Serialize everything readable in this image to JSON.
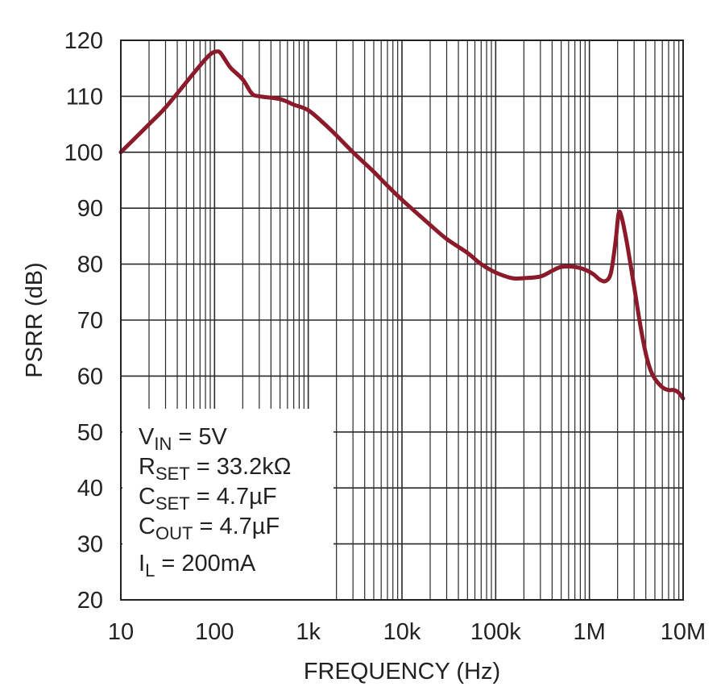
{
  "chart_data": {
    "type": "line",
    "title": "",
    "xlabel": "FREQUENCY (Hz)",
    "ylabel": "PSRR (dB)",
    "x_scale": "log",
    "xlim": [
      10,
      10000000
    ],
    "ylim": [
      20,
      120
    ],
    "grid": true,
    "x_tick_labels": [
      "10",
      "100",
      "1k",
      "10k",
      "100k",
      "1M",
      "10M"
    ],
    "y_tick_labels": [
      "20",
      "30",
      "40",
      "50",
      "60",
      "70",
      "80",
      "90",
      "100",
      "110",
      "120"
    ],
    "series_color": "#8B1A2B",
    "series": [
      {
        "x": [
          10,
          20,
          30,
          50,
          70,
          90,
          105,
          115,
          130,
          150,
          200,
          250,
          300,
          500,
          700,
          1000,
          1500,
          2000,
          3000,
          5000,
          7000,
          10000,
          20000,
          30000,
          50000,
          70000,
          100000,
          150000,
          200000,
          300000,
          400000,
          500000,
          700000,
          900000,
          1100000,
          1300000,
          1500000,
          1700000,
          1900000,
          2050000,
          2200000,
          2500000,
          3000000,
          3500000,
          4000000,
          4500000,
          5000000,
          6000000,
          7000000,
          8000000,
          9000000,
          10000000
        ],
        "y": [
          100,
          105,
          108,
          112.5,
          115.5,
          117.5,
          118,
          117.8,
          116.5,
          115,
          113,
          110.5,
          110,
          109.5,
          108.5,
          107.5,
          105,
          103,
          100,
          96.5,
          94,
          91.5,
          87,
          84.5,
          82,
          80,
          78.5,
          77.5,
          77.5,
          77.8,
          78.8,
          79.5,
          79.5,
          79,
          78.2,
          77.2,
          77,
          78.5,
          84,
          89,
          88.5,
          84,
          76,
          69,
          64,
          61,
          59.5,
          58,
          57.5,
          57.5,
          57,
          56
        ]
      }
    ],
    "annotations": {
      "vin": {
        "main": "V",
        "sub": "IN",
        "rest": " = 5V"
      },
      "rset": {
        "main": "R",
        "sub": "SET",
        "rest": " = 33.2kΩ"
      },
      "cset": {
        "main": "C",
        "sub": "SET",
        "rest": " = 4.7µF"
      },
      "cout": {
        "main": "C",
        "sub": "OUT",
        "rest": " = 4.7µF"
      },
      "il": {
        "main": "I",
        "sub": "L",
        "rest": " = 200mA"
      }
    }
  }
}
